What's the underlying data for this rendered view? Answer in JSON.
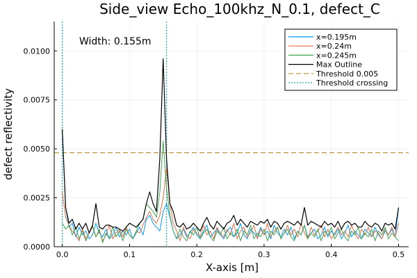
{
  "chart_data": {
    "type": "line",
    "title": "Side_view Echo_100khz_N_0.1, defect_C",
    "xlabel": "X-axis [m]",
    "ylabel": "defect reflectivity",
    "xlim": [
      -0.012,
      0.515
    ],
    "ylim": [
      0,
      0.0115
    ],
    "xticks": [
      0.0,
      0.1,
      0.2,
      0.3,
      0.4,
      0.5
    ],
    "xtick_labels": [
      "0.0",
      "0.1",
      "0.2",
      "0.3",
      "0.4",
      "0.5"
    ],
    "yticks": [
      0,
      0.0025,
      0.005,
      0.0075,
      0.01
    ],
    "ytick_labels": [
      "0.0000",
      "0.0025",
      "0.0050",
      "0.0075",
      "0.0100"
    ],
    "grid": true,
    "legend_position": "top-right",
    "annotation": "Width: 0.155m",
    "x": [
      0.0,
      0.005,
      0.01,
      0.015,
      0.02,
      0.025,
      0.03,
      0.035,
      0.04,
      0.045,
      0.05,
      0.055,
      0.06,
      0.065,
      0.07,
      0.075,
      0.08,
      0.085,
      0.09,
      0.095,
      0.1,
      0.105,
      0.11,
      0.115,
      0.12,
      0.125,
      0.13,
      0.135,
      0.14,
      0.145,
      0.15,
      0.155,
      0.16,
      0.165,
      0.17,
      0.175,
      0.18,
      0.185,
      0.19,
      0.195,
      0.2,
      0.205,
      0.21,
      0.215,
      0.22,
      0.225,
      0.23,
      0.235,
      0.24,
      0.245,
      0.25,
      0.255,
      0.26,
      0.265,
      0.27,
      0.275,
      0.28,
      0.285,
      0.29,
      0.295,
      0.3,
      0.305,
      0.31,
      0.315,
      0.32,
      0.325,
      0.33,
      0.335,
      0.34,
      0.345,
      0.35,
      0.355,
      0.36,
      0.365,
      0.37,
      0.375,
      0.38,
      0.385,
      0.39,
      0.395,
      0.4,
      0.405,
      0.41,
      0.415,
      0.42,
      0.425,
      0.43,
      0.435,
      0.44,
      0.445,
      0.45,
      0.455,
      0.46,
      0.465,
      0.47,
      0.475,
      0.48,
      0.485,
      0.49,
      0.495,
      0.5
    ],
    "series": [
      {
        "name": "x=0.195m",
        "color": "#009AFA",
        "style": "solid",
        "values": [
          0.006,
          0.002,
          0.001,
          0.0012,
          0.0005,
          0.001,
          0.0006,
          0.0008,
          0.0004,
          0.0006,
          0.0012,
          0.0007,
          0.0005,
          0.0009,
          0.0004,
          0.0006,
          0.001,
          0.0005,
          0.0008,
          0.0006,
          0.0009,
          0.0004,
          0.0007,
          0.001,
          0.0006,
          0.0014,
          0.0016,
          0.0012,
          0.001,
          0.0008,
          0.0018,
          0.0022,
          0.0015,
          0.0008,
          0.0004,
          0.0006,
          0.0009,
          0.0005,
          0.0007,
          0.001,
          0.0006,
          0.0004,
          0.0008,
          0.0011,
          0.0005,
          0.0007,
          0.0009,
          0.0006,
          0.0004,
          0.0008,
          0.001,
          0.0005,
          0.0007,
          0.0012,
          0.0006,
          0.0004,
          0.0009,
          0.0007,
          0.0005,
          0.001,
          0.0006,
          0.0008,
          0.0004,
          0.0011,
          0.0007,
          0.0005,
          0.0009,
          0.0006,
          0.001,
          0.0004,
          0.0008,
          0.0006,
          0.0011,
          0.0005,
          0.0007,
          0.0009,
          0.0004,
          0.0006,
          0.001,
          0.0005,
          0.0008,
          0.0006,
          0.0009,
          0.0004,
          0.0007,
          0.0011,
          0.0005,
          0.0008,
          0.0006,
          0.0004,
          0.0009,
          0.0007,
          0.0005,
          0.001,
          0.0006,
          0.0004,
          0.0008,
          0.0006,
          0.0009,
          0.0005,
          0.002
        ]
      },
      {
        "name": "x=0.24m",
        "color": "#E26F46",
        "style": "solid",
        "values": [
          0.0028,
          0.0015,
          0.0011,
          0.0008,
          0.0006,
          0.0003,
          0.0009,
          0.0004,
          0.0007,
          0.001,
          0.0005,
          0.0008,
          0.0003,
          0.0006,
          0.0011,
          0.0004,
          0.0007,
          0.0009,
          0.0005,
          0.001,
          0.0006,
          0.0004,
          0.0008,
          0.0007,
          0.0011,
          0.0015,
          0.0018,
          0.0014,
          0.0012,
          0.0016,
          0.0025,
          0.004,
          0.0022,
          0.0012,
          0.0008,
          0.0003,
          0.001,
          0.0006,
          0.0004,
          0.0009,
          0.0007,
          0.0005,
          0.0011,
          0.0006,
          0.0008,
          0.0004,
          0.001,
          0.0007,
          0.0005,
          0.0009,
          0.0006,
          0.0012,
          0.0004,
          0.0008,
          0.001,
          0.0005,
          0.0007,
          0.0011,
          0.0004,
          0.0009,
          0.0006,
          0.0012,
          0.0005,
          0.0008,
          0.001,
          0.0004,
          0.0007,
          0.0011,
          0.0006,
          0.0009,
          0.0005,
          0.0012,
          0.0007,
          0.0004,
          0.001,
          0.0006,
          0.0008,
          0.0011,
          0.0005,
          0.0009,
          0.0004,
          0.0007,
          0.001,
          0.0006,
          0.0008,
          0.0005,
          0.0011,
          0.0007,
          0.0004,
          0.0009,
          0.0006,
          0.001,
          0.0005,
          0.0008,
          0.0007,
          0.0004,
          0.0009,
          0.0006,
          0.001,
          0.0005,
          0.0012
        ]
      },
      {
        "name": "x=0.245m",
        "color": "#3EA44E",
        "style": "solid",
        "values": [
          0.0012,
          0.0009,
          0.0011,
          0.0006,
          0.001,
          0.0004,
          0.0008,
          0.0003,
          0.0007,
          0.0011,
          0.0005,
          0.0009,
          0.0002,
          0.0007,
          0.0004,
          0.001,
          0.0005,
          0.0008,
          0.0003,
          0.0009,
          0.0006,
          0.0004,
          0.0008,
          0.0012,
          0.0014,
          0.0022,
          0.002,
          0.0018,
          0.0015,
          0.0028,
          0.0054,
          0.003,
          0.0016,
          0.0008,
          0.0004,
          0.0009,
          0.0005,
          0.0003,
          0.0008,
          0.0006,
          0.001,
          0.0004,
          0.0007,
          0.0009,
          0.0005,
          0.0003,
          0.0008,
          0.0006,
          0.001,
          0.0004,
          0.0007,
          0.0005,
          0.0009,
          0.0003,
          0.0008,
          0.0006,
          0.0011,
          0.0004,
          0.0007,
          0.0005,
          0.0009,
          0.0003,
          0.0008,
          0.0006,
          0.001,
          0.0004,
          0.0007,
          0.0009,
          0.0005,
          0.0003,
          0.0008,
          0.0006,
          0.0011,
          0.0004,
          0.0007,
          0.0005,
          0.0009,
          0.0003,
          0.0008,
          0.0006,
          0.001,
          0.0004,
          0.0007,
          0.0009,
          0.0005,
          0.0003,
          0.0008,
          0.0006,
          0.001,
          0.0004,
          0.0007,
          0.0005,
          0.0009,
          0.0003,
          0.0008,
          0.0006,
          0.001,
          0.0004,
          0.0007,
          0.0005,
          0.0003
        ]
      },
      {
        "name": "Max Outline",
        "color": "#000000",
        "style": "solid",
        "values": [
          0.006,
          0.002,
          0.0012,
          0.0014,
          0.0009,
          0.0012,
          0.0009,
          0.0012,
          0.0007,
          0.0011,
          0.0022,
          0.001,
          0.0009,
          0.0011,
          0.0011,
          0.001,
          0.001,
          0.0009,
          0.0008,
          0.001,
          0.0012,
          0.0011,
          0.001,
          0.0012,
          0.0014,
          0.0022,
          0.0028,
          0.0022,
          0.0018,
          0.0045,
          0.0096,
          0.0045,
          0.0022,
          0.0018,
          0.0011,
          0.001,
          0.0012,
          0.0009,
          0.001,
          0.0012,
          0.001,
          0.0008,
          0.0012,
          0.0015,
          0.0011,
          0.0009,
          0.0013,
          0.0011,
          0.0009,
          0.0012,
          0.0013,
          0.0016,
          0.0011,
          0.0014,
          0.0012,
          0.001,
          0.0013,
          0.0012,
          0.0011,
          0.0013,
          0.0012,
          0.0014,
          0.001,
          0.0013,
          0.0012,
          0.0009,
          0.0012,
          0.0013,
          0.0012,
          0.0011,
          0.0013,
          0.0011,
          0.002,
          0.0011,
          0.0013,
          0.0012,
          0.0011,
          0.001,
          0.0013,
          0.0011,
          0.0012,
          0.001,
          0.0013,
          0.0009,
          0.0012,
          0.0013,
          0.0011,
          0.0012,
          0.001,
          0.001,
          0.0013,
          0.0011,
          0.001,
          0.0012,
          0.0011,
          0.0008,
          0.0012,
          0.0011,
          0.0012,
          0.0009,
          0.002
        ]
      }
    ],
    "threshold": {
      "name": "Threshold 0.005",
      "value": 0.0048,
      "color": "#B8963A",
      "style": "dashed"
    },
    "crossing": {
      "name": "Threshold crossing",
      "x": [
        0.0,
        0.155
      ],
      "color": "#1BA9B0",
      "style": "dotted"
    }
  }
}
